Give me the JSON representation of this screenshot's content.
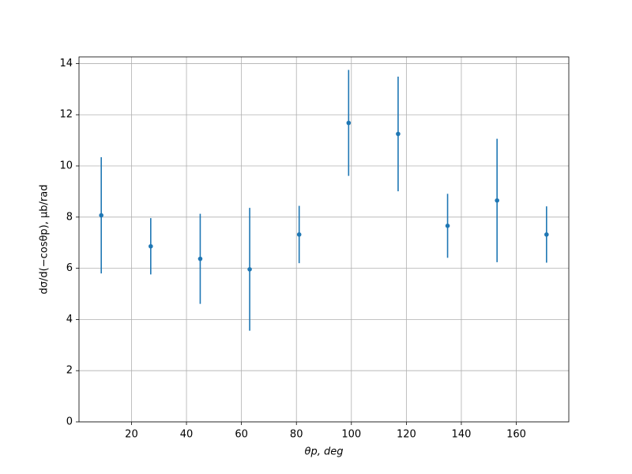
{
  "chart_data": {
    "type": "errorbar",
    "xlabel": "θp, deg",
    "ylabel": "dσ/d(−cosθp), μb/rad",
    "x": [
      9,
      27,
      45,
      63,
      81,
      99,
      117,
      135,
      153,
      171
    ],
    "values": [
      8.07,
      6.86,
      6.37,
      5.96,
      7.32,
      11.68,
      11.25,
      7.66,
      8.65,
      7.32
    ],
    "errors": [
      2.27,
      1.1,
      1.76,
      2.4,
      1.12,
      2.07,
      2.24,
      1.25,
      2.41,
      1.1
    ],
    "color": "#1f77b4",
    "xlim": [
      0.9,
      179.1
    ],
    "xticks": [
      20,
      40,
      60,
      80,
      100,
      120,
      140,
      160
    ],
    "ylim": [
      0,
      14.26
    ],
    "yticks": [
      0,
      2,
      4,
      6,
      8,
      10,
      12,
      14
    ],
    "grid": true
  }
}
